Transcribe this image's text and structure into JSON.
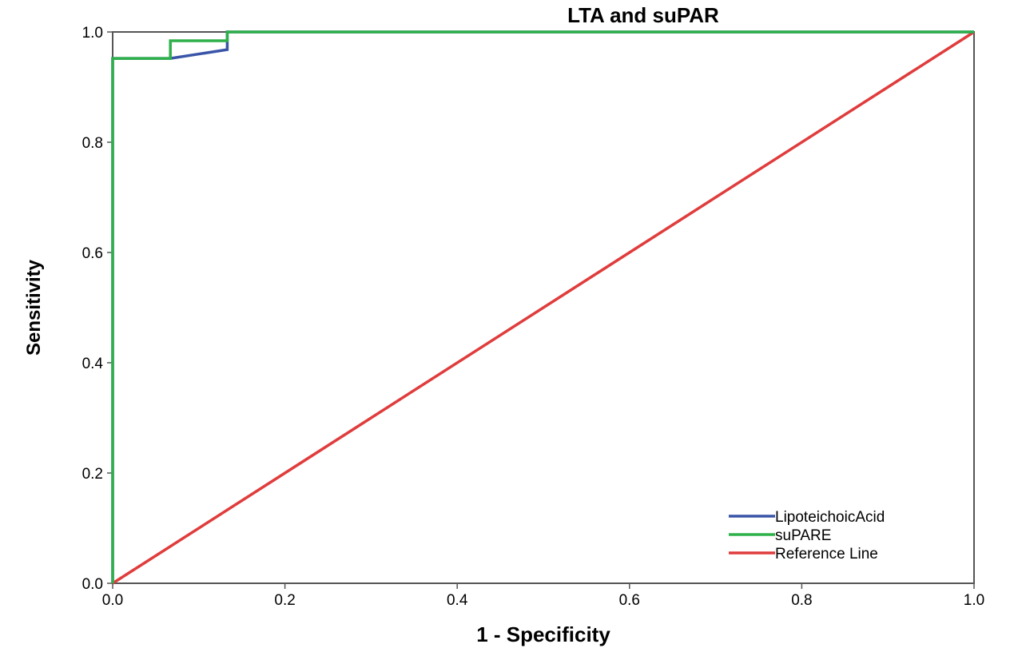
{
  "chart_data": {
    "type": "line",
    "title": "LTA and suPAR",
    "xlabel": "1 - Specificity",
    "ylabel": "Sensitivity",
    "xlim": [
      0,
      1
    ],
    "ylim": [
      0,
      1
    ],
    "x_ticks": [
      0.0,
      0.2,
      0.4,
      0.6,
      0.8,
      1.0
    ],
    "x_tick_labels": [
      "0.0",
      "0.2",
      "0.4",
      "0.6",
      "0.8",
      "1.0"
    ],
    "y_ticks": [
      0.0,
      0.2,
      0.4,
      0.6,
      0.8,
      1.0
    ],
    "y_tick_labels": [
      "0.0",
      "0.2",
      "0.4",
      "0.6",
      "0.8",
      "1.0"
    ],
    "grid": false,
    "legend_position": "bottom-right",
    "series": [
      {
        "name": "LipoteichoicAcid",
        "color": "#3a55a8",
        "x": [
          0.0,
          0.0,
          0.067,
          0.133,
          0.133,
          1.0
        ],
        "y": [
          0.0,
          0.952,
          0.952,
          0.968,
          1.0,
          1.0
        ]
      },
      {
        "name": "suPARE",
        "color": "#2eb04a",
        "x": [
          0.0,
          0.0,
          0.067,
          0.067,
          0.133,
          0.133,
          1.0
        ],
        "y": [
          0.0,
          0.952,
          0.952,
          0.984,
          0.984,
          1.0,
          1.0
        ]
      },
      {
        "name": "Reference Line",
        "color": "#e03c3c",
        "x": [
          0.0,
          1.0
        ],
        "y": [
          0.0,
          1.0
        ]
      }
    ]
  }
}
